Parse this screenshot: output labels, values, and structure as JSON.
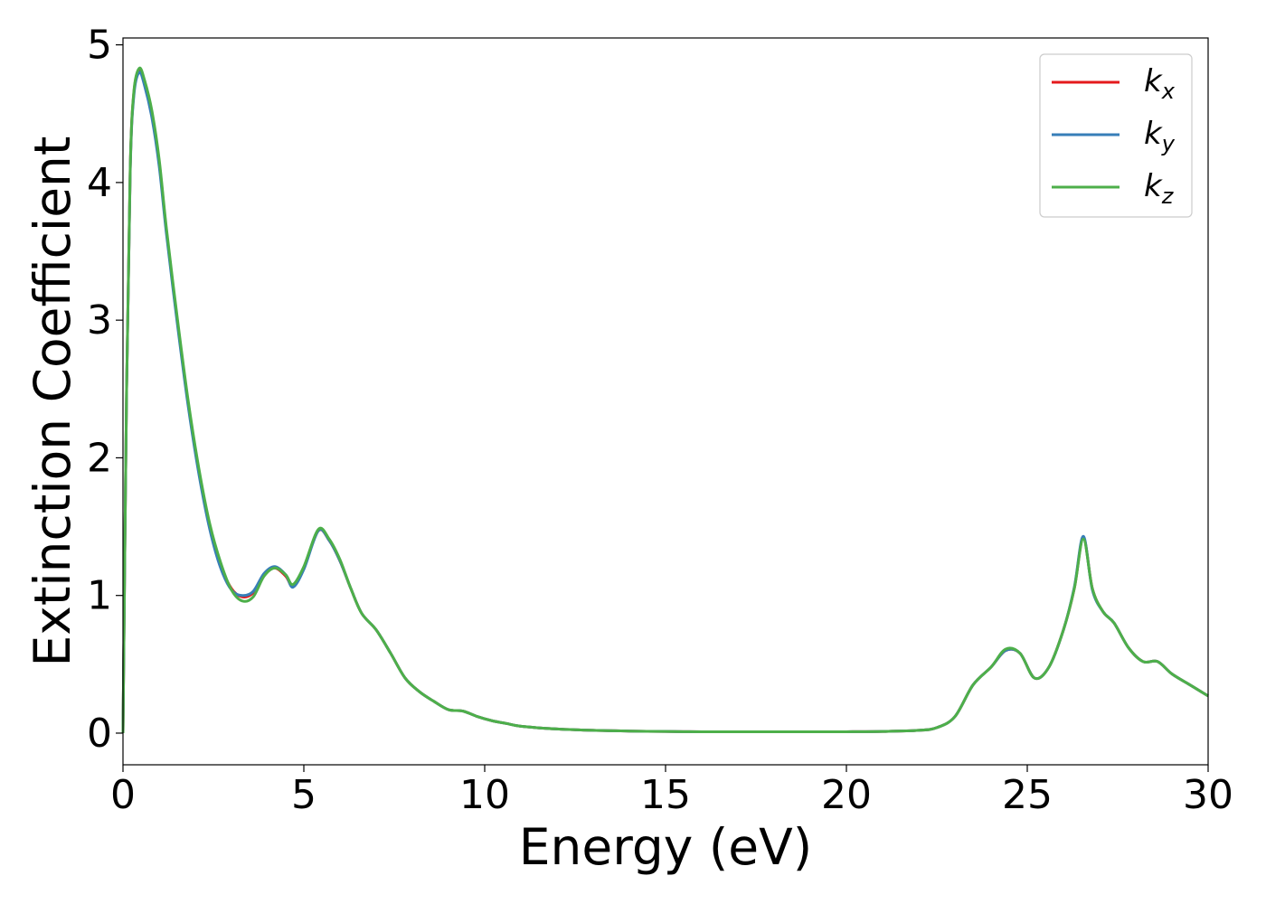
{
  "chart_data": {
    "type": "line",
    "xlabel": "Energy (eV)",
    "ylabel": "Extinction Coefficient",
    "xlim": [
      0,
      30
    ],
    "ylim": [
      -0.23,
      5.05
    ],
    "xticks": [
      0,
      5,
      10,
      15,
      20,
      25,
      30
    ],
    "yticks": [
      0,
      1,
      2,
      3,
      4,
      5
    ],
    "grid": false,
    "legend_position": "top-right",
    "series": [
      {
        "name": "k_x",
        "label_main": "k",
        "label_sub": "x",
        "color": "#e41a1c",
        "x": [
          0,
          0.1,
          0.2,
          0.3,
          0.45,
          0.6,
          0.8,
          1.0,
          1.2,
          1.5,
          1.8,
          2.1,
          2.4,
          2.7,
          3.0,
          3.3,
          3.6,
          3.9,
          4.2,
          4.5,
          4.7,
          5.0,
          5.4,
          5.7,
          6.0,
          6.3,
          6.6,
          7.0,
          7.4,
          7.8,
          8.2,
          8.6,
          9.0,
          9.4,
          9.8,
          10.2,
          10.6,
          11.0,
          12.0,
          13.0,
          14.0,
          15.0,
          16.0,
          17.0,
          18.0,
          19.0,
          20.0,
          21.0,
          22.0,
          22.5,
          23.0,
          23.5,
          24.0,
          24.4,
          24.8,
          25.2,
          25.6,
          26.0,
          26.3,
          26.55,
          26.8,
          27.1,
          27.4,
          27.8,
          28.2,
          28.6,
          29.0,
          29.5,
          30.0
        ],
        "y": [
          0.0,
          2.5,
          4.1,
          4.65,
          4.82,
          4.72,
          4.5,
          4.15,
          3.65,
          3.0,
          2.4,
          1.9,
          1.5,
          1.22,
          1.05,
          0.99,
          1.02,
          1.15,
          1.2,
          1.14,
          1.07,
          1.2,
          1.47,
          1.4,
          1.25,
          1.05,
          0.87,
          0.75,
          0.58,
          0.4,
          0.3,
          0.23,
          0.17,
          0.16,
          0.12,
          0.09,
          0.07,
          0.05,
          0.03,
          0.02,
          0.015,
          0.012,
          0.01,
          0.01,
          0.01,
          0.01,
          0.01,
          0.012,
          0.02,
          0.04,
          0.12,
          0.35,
          0.48,
          0.6,
          0.58,
          0.4,
          0.48,
          0.75,
          1.05,
          1.42,
          1.05,
          0.88,
          0.8,
          0.62,
          0.52,
          0.52,
          0.43,
          0.35,
          0.27
        ]
      },
      {
        "name": "k_y",
        "label_main": "k",
        "label_sub": "y",
        "color": "#377eb8",
        "x": [
          0,
          0.1,
          0.2,
          0.3,
          0.45,
          0.6,
          0.8,
          1.0,
          1.2,
          1.5,
          1.8,
          2.1,
          2.4,
          2.7,
          3.0,
          3.3,
          3.6,
          3.9,
          4.2,
          4.5,
          4.7,
          5.0,
          5.4,
          5.7,
          6.0,
          6.3,
          6.6,
          7.0,
          7.4,
          7.8,
          8.2,
          8.6,
          9.0,
          9.4,
          9.8,
          10.2,
          10.6,
          11.0,
          12.0,
          13.0,
          14.0,
          15.0,
          16.0,
          17.0,
          18.0,
          19.0,
          20.0,
          21.0,
          22.0,
          22.5,
          23.0,
          23.5,
          24.0,
          24.4,
          24.8,
          25.2,
          25.6,
          26.0,
          26.3,
          26.55,
          26.8,
          27.1,
          27.4,
          27.8,
          28.2,
          28.6,
          29.0,
          29.5,
          30.0
        ],
        "y": [
          0.0,
          2.5,
          4.08,
          4.63,
          4.8,
          4.7,
          4.47,
          4.12,
          3.63,
          2.98,
          2.38,
          1.88,
          1.48,
          1.2,
          1.04,
          1.0,
          1.03,
          1.16,
          1.21,
          1.15,
          1.06,
          1.19,
          1.47,
          1.4,
          1.25,
          1.05,
          0.87,
          0.75,
          0.58,
          0.4,
          0.3,
          0.23,
          0.17,
          0.16,
          0.12,
          0.09,
          0.07,
          0.05,
          0.03,
          0.02,
          0.015,
          0.012,
          0.01,
          0.01,
          0.01,
          0.01,
          0.01,
          0.012,
          0.02,
          0.04,
          0.12,
          0.35,
          0.48,
          0.6,
          0.58,
          0.4,
          0.48,
          0.75,
          1.06,
          1.43,
          1.04,
          0.88,
          0.8,
          0.62,
          0.52,
          0.52,
          0.43,
          0.35,
          0.27
        ]
      },
      {
        "name": "k_z",
        "label_main": "k",
        "label_sub": "z",
        "color": "#4daf4a",
        "x": [
          0,
          0.1,
          0.2,
          0.3,
          0.45,
          0.6,
          0.8,
          1.0,
          1.2,
          1.5,
          1.8,
          2.1,
          2.4,
          2.7,
          3.0,
          3.3,
          3.6,
          3.9,
          4.2,
          4.5,
          4.7,
          5.0,
          5.4,
          5.7,
          6.0,
          6.3,
          6.6,
          7.0,
          7.4,
          7.8,
          8.2,
          8.6,
          9.0,
          9.4,
          9.8,
          10.2,
          10.6,
          11.0,
          12.0,
          13.0,
          14.0,
          15.0,
          16.0,
          17.0,
          18.0,
          19.0,
          20.0,
          21.0,
          22.0,
          22.5,
          23.0,
          23.5,
          24.0,
          24.4,
          24.8,
          25.2,
          25.6,
          26.0,
          26.3,
          26.55,
          26.8,
          27.1,
          27.4,
          27.8,
          28.2,
          28.6,
          29.0,
          29.5,
          30.0
        ],
        "y": [
          0.0,
          2.5,
          4.1,
          4.66,
          4.83,
          4.74,
          4.52,
          4.17,
          3.67,
          3.02,
          2.42,
          1.92,
          1.52,
          1.24,
          1.04,
          0.96,
          0.99,
          1.14,
          1.2,
          1.15,
          1.08,
          1.21,
          1.48,
          1.41,
          1.26,
          1.05,
          0.87,
          0.75,
          0.58,
          0.4,
          0.3,
          0.23,
          0.17,
          0.16,
          0.12,
          0.09,
          0.07,
          0.05,
          0.03,
          0.02,
          0.015,
          0.012,
          0.01,
          0.01,
          0.01,
          0.01,
          0.01,
          0.012,
          0.02,
          0.04,
          0.12,
          0.35,
          0.48,
          0.61,
          0.58,
          0.4,
          0.48,
          0.75,
          1.05,
          1.41,
          1.05,
          0.88,
          0.8,
          0.62,
          0.52,
          0.52,
          0.43,
          0.35,
          0.27
        ]
      }
    ]
  }
}
